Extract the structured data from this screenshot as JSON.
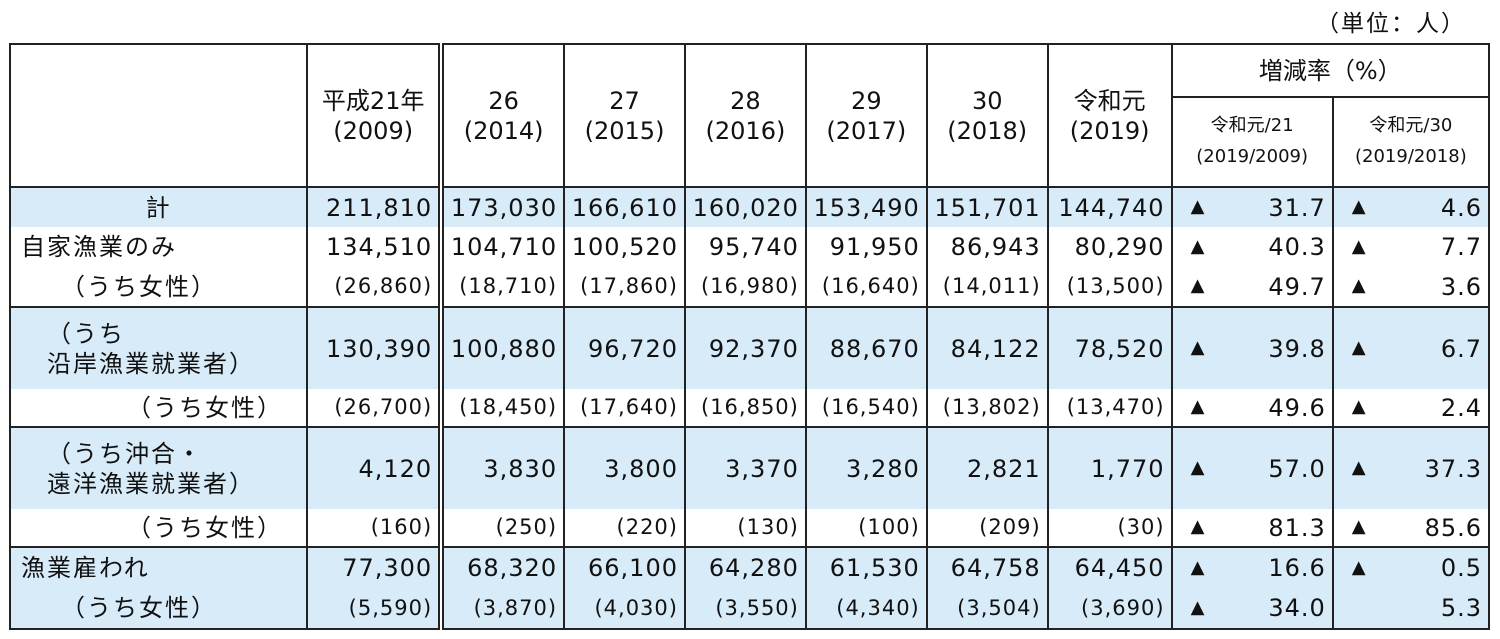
{
  "unit": "（単位：人）",
  "header": {
    "years": [
      {
        "label": "平成21年",
        "sub": "(2009)"
      },
      {
        "label": "26",
        "sub": "(2014)"
      },
      {
        "label": "27",
        "sub": "(2015)"
      },
      {
        "label": "28",
        "sub": "(2016)"
      },
      {
        "label": "29",
        "sub": "(2017)"
      },
      {
        "label": "30",
        "sub": "(2018)"
      },
      {
        "label": "令和元",
        "sub": "(2019)"
      }
    ],
    "rate_group": "増減率（%）",
    "rate_cols": [
      {
        "label": "令和元/21",
        "sub": "(2019/2009)"
      },
      {
        "label": "令和元/30",
        "sub": "(2019/2018)"
      }
    ]
  },
  "rows": [
    {
      "label": "計",
      "values": [
        "211,810",
        "173,030",
        "166,610",
        "160,020",
        "153,490",
        "151,701",
        "144,740"
      ],
      "rate1": "31.7",
      "tri1": "▲",
      "rate2": "4.6",
      "tri2": "▲"
    },
    {
      "label": "自家漁業のみ",
      "values": [
        "134,510",
        "104,710",
        "100,520",
        "95,740",
        "91,950",
        "86,943",
        "80,290"
      ],
      "rate1": "40.3",
      "tri1": "▲",
      "rate2": "7.7",
      "tri2": "▲"
    },
    {
      "label": "（うち女性）",
      "values": [
        "(26,860)",
        "(18,710)",
        "(17,860)",
        "(16,980)",
        "(16,640)",
        "(14,011)",
        "(13,500)"
      ],
      "rate1": "49.7",
      "tri1": "▲",
      "rate2": "3.6",
      "tri2": "▲"
    },
    {
      "label1": "（うち",
      "label2": "沿岸漁業就業者）",
      "values": [
        "130,390",
        "100,880",
        "96,720",
        "92,370",
        "88,670",
        "84,122",
        "78,520"
      ],
      "rate1": "39.8",
      "tri1": "▲",
      "rate2": "6.7",
      "tri2": "▲"
    },
    {
      "label": "（うち女性）",
      "values": [
        "(26,700)",
        "(18,450)",
        "(17,640)",
        "(16,850)",
        "(16,540)",
        "(13,802)",
        "(13,470)"
      ],
      "rate1": "49.6",
      "tri1": "▲",
      "rate2": "2.4",
      "tri2": "▲"
    },
    {
      "label1": "（うち沖合・",
      "label2": "遠洋漁業就業者）",
      "values": [
        "4,120",
        "3,830",
        "3,800",
        "3,370",
        "3,280",
        "2,821",
        "1,770"
      ],
      "rate1": "57.0",
      "tri1": "▲",
      "rate2": "37.3",
      "tri2": "▲"
    },
    {
      "label": "（うち女性）",
      "values": [
        "(160)",
        "(250)",
        "(220)",
        "(130)",
        "(100)",
        "(209)",
        "(30)"
      ],
      "rate1": "81.3",
      "tri1": "▲",
      "rate2": "85.6",
      "tri2": "▲"
    },
    {
      "label": "漁業雇われ",
      "values": [
        "77,300",
        "68,320",
        "66,100",
        "64,280",
        "61,530",
        "64,758",
        "64,450"
      ],
      "rate1": "16.6",
      "tri1": "▲",
      "rate2": "0.5",
      "tri2": "▲"
    },
    {
      "label": "（うち女性）",
      "values": [
        "(5,590)",
        "(3,870)",
        "(4,030)",
        "(3,550)",
        "(4,340)",
        "(3,504)",
        "(3,690)"
      ],
      "rate1": "34.0",
      "tri1": "▲",
      "rate2": "5.3",
      "tri2": ""
    }
  ]
}
